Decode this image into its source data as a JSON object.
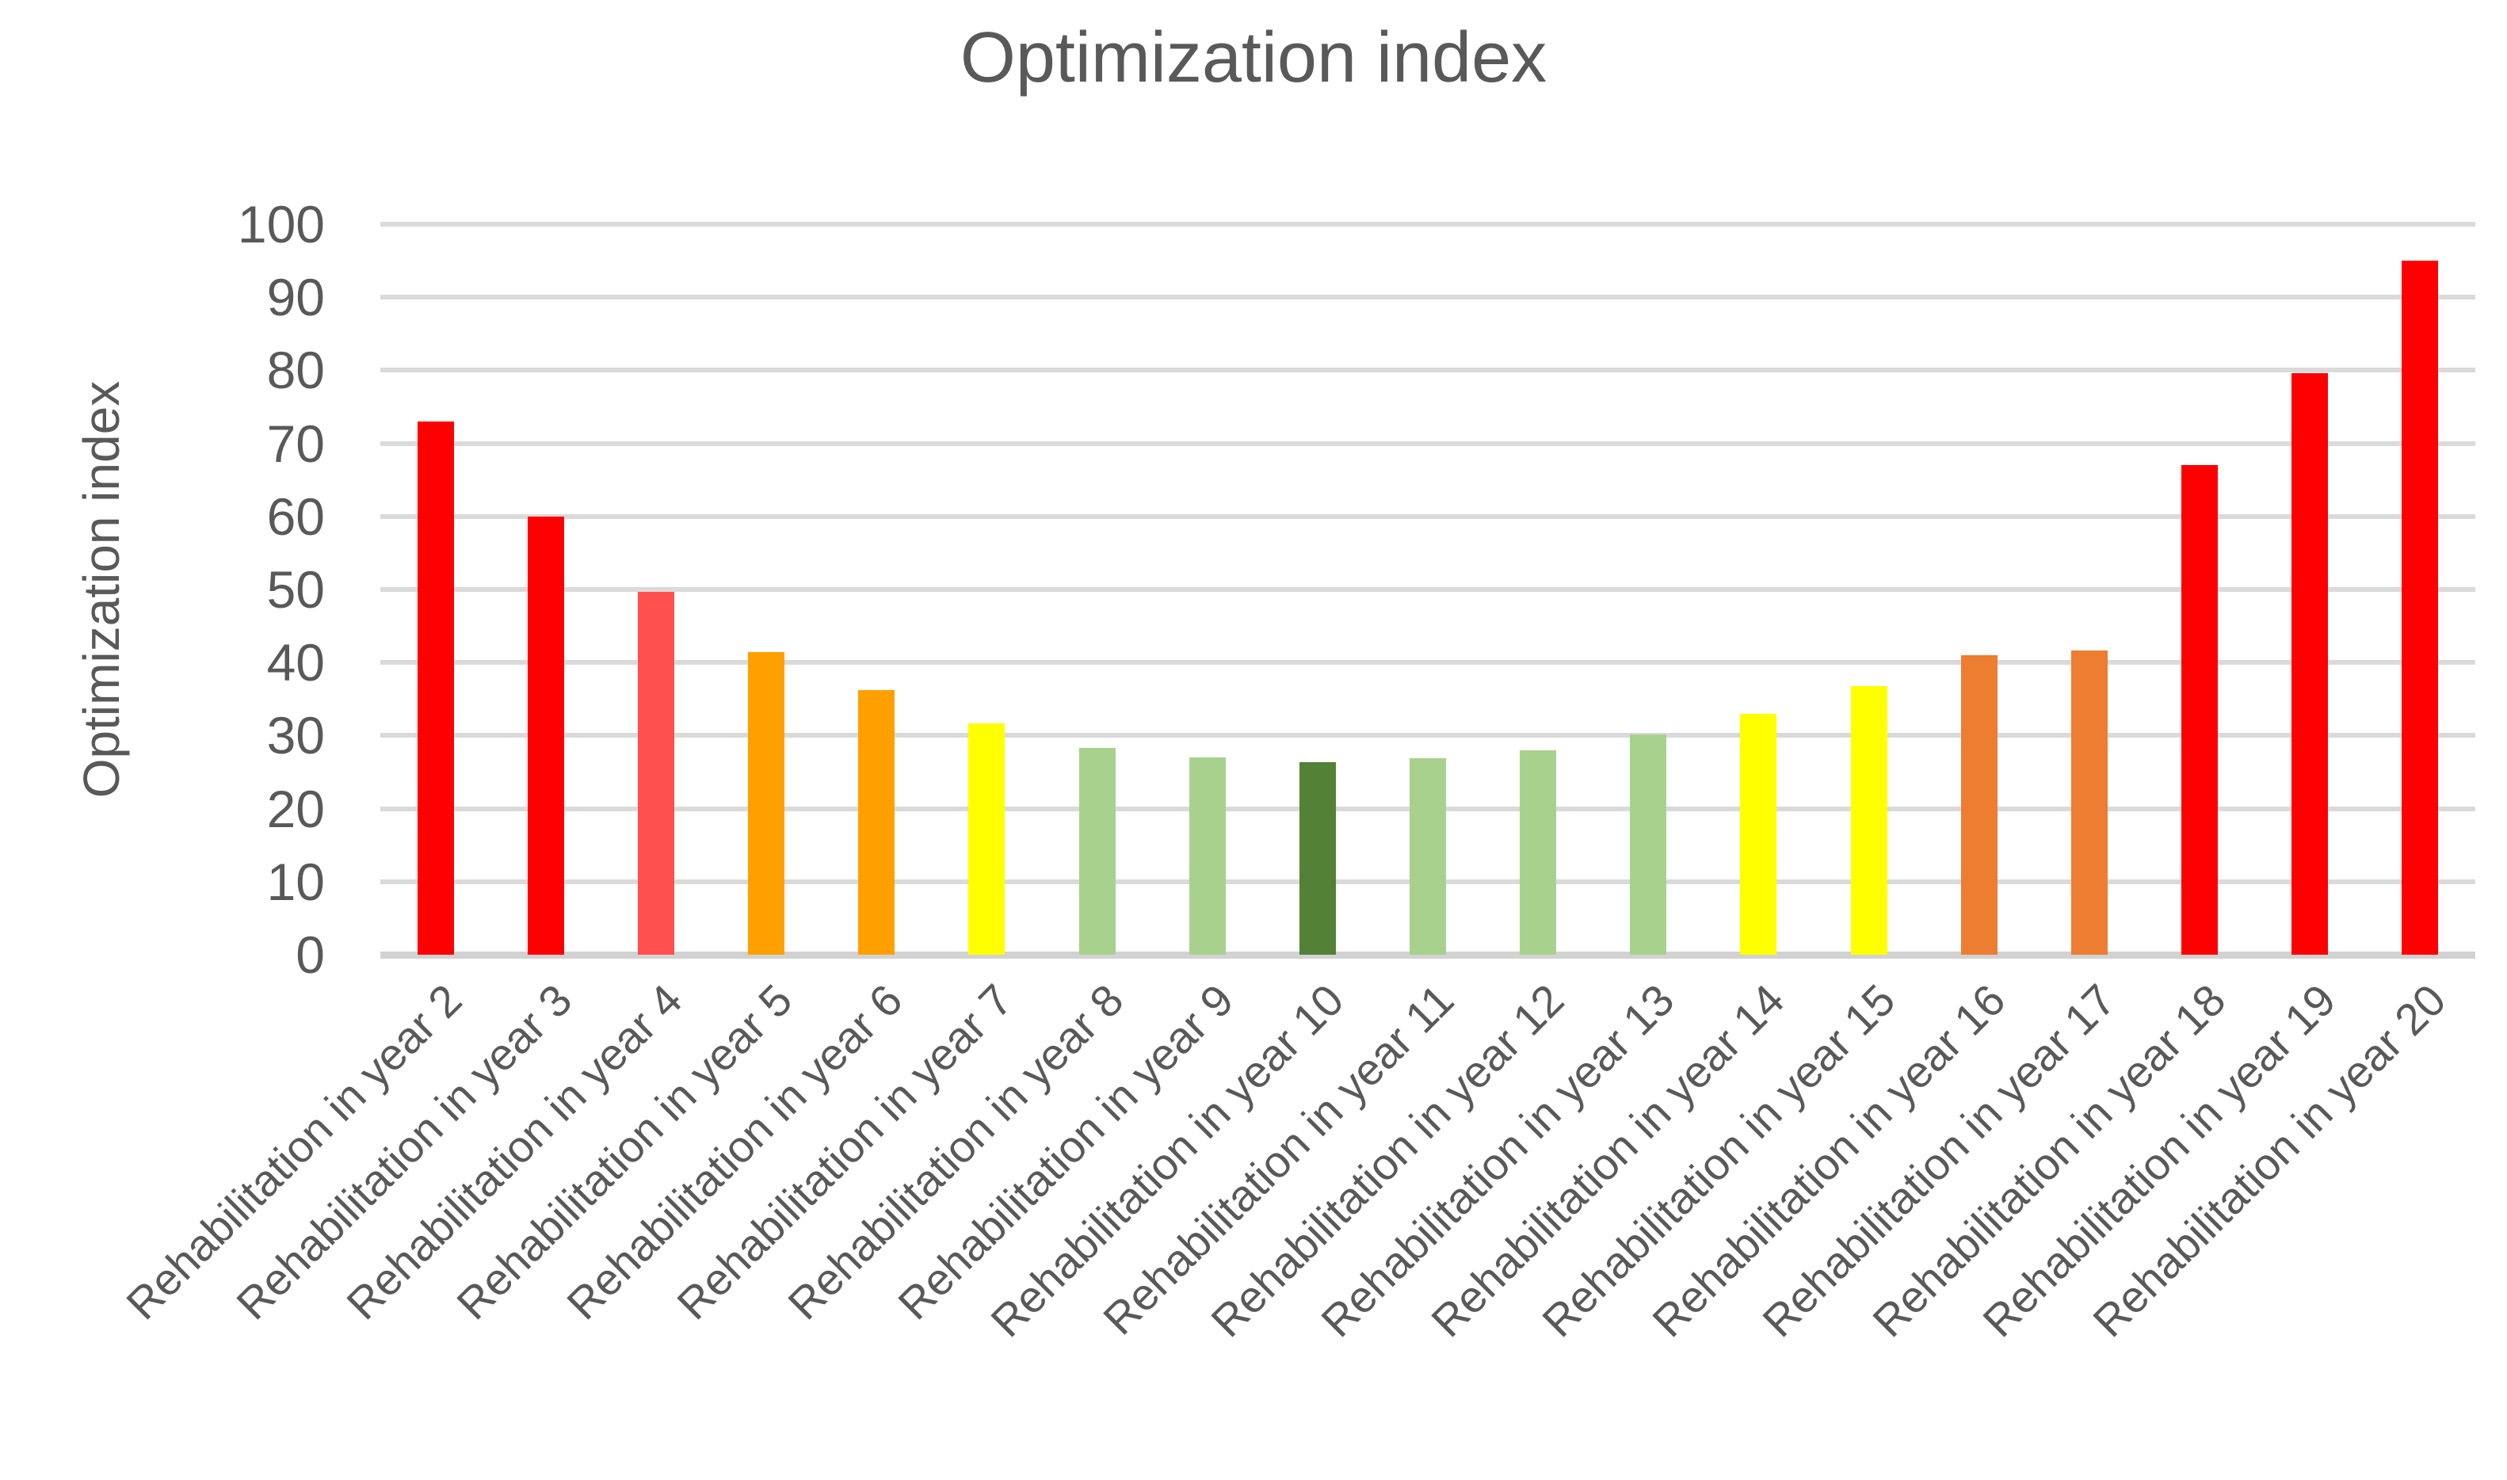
{
  "title": "Optimization index",
  "chart_data": {
    "type": "bar",
    "title": "Optimization index",
    "xlabel": "",
    "ylabel": "Optimization index",
    "ylim": [
      0,
      100
    ],
    "ytick_interval": 10,
    "yticks": [
      0,
      10,
      20,
      30,
      40,
      50,
      60,
      70,
      80,
      90,
      100
    ],
    "grid": true,
    "legend": false,
    "categories": [
      "Rehabilitation in year 2",
      "Rehabilitation in year 3",
      "Rehabilitation in year 4",
      "Rehabilitation in year 5",
      "Rehabilitation in year 6",
      "Rehabilitation in year 7",
      "Rehabilitation in year 8",
      "Rehabilitation in year 9",
      "Rehabilitation in year 10",
      "Rehabilitation in year 11",
      "Rehabilitation in year 12",
      "Rehabilitation in year 13",
      "Rehabilitation in year 14",
      "Rehabilitation in year 15",
      "Rehabilitation in year 16",
      "Rehabilitation in year 17",
      "Rehabilitation in year 18",
      "Rehabilitation in year 19",
      "Rehabilitation in year 20"
    ],
    "values": [
      73,
      60,
      49.7,
      41.4,
      36.2,
      31.7,
      28.3,
      27,
      26.4,
      26.9,
      28,
      30.2,
      33,
      36.8,
      41,
      41.6,
      67,
      79.6,
      95
    ],
    "bar_colors": [
      "#FF0000",
      "#FF0000",
      "#FF5050",
      "#FFA000",
      "#FFA000",
      "#FFFF00",
      "#A9D18E",
      "#A9D18E",
      "#538135",
      "#A9D18E",
      "#A9D18E",
      "#A9D18E",
      "#FFFF00",
      "#FFFF00",
      "#ED7D31",
      "#ED7D31",
      "#FF0000",
      "#FF0000",
      "#FF0000"
    ],
    "colors": {
      "red": "#FF0000",
      "salmon_red": "#FF5050",
      "orange": "#FFA000",
      "dark_orange": "#ED7D31",
      "yellow": "#FFFF00",
      "light_green": "#A9D18E",
      "dark_green": "#538135",
      "text": "#595959",
      "gridline": "#DADADA",
      "axis_line": "#D2D2D2",
      "background": "#FFFFFF"
    }
  }
}
